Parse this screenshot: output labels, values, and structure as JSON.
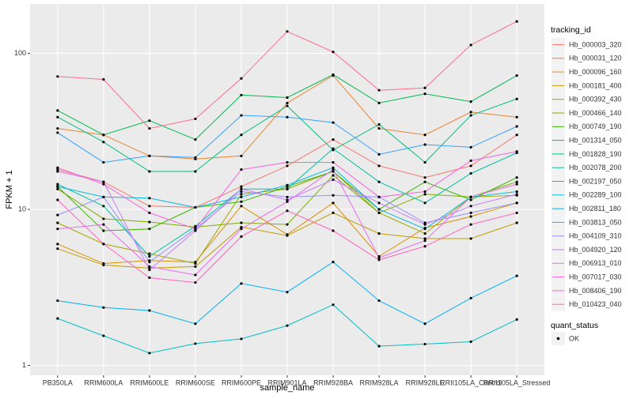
{
  "chart_data": {
    "type": "line",
    "x_label": "sample_name",
    "y_label": "FPKM + 1",
    "log_scale": true,
    "grid": true,
    "ylim": [
      0.865,
      207
    ],
    "yticks": [
      1,
      10,
      100
    ],
    "legend_title": "tracking_id",
    "legend_position": "right",
    "shape_legend_title": "quant_status",
    "shape_legend_labels": [
      "OK"
    ],
    "categories": [
      "PB350LA",
      "RRIM600LA",
      "RRIM600LE",
      "RRIM600SE",
      "RRIM600PE",
      "RRIM901LA",
      "RRIM928BA",
      "RRIM928LA",
      "RRIM928LE",
      "RRII105LA_Control",
      "RRII105LA_Stressed"
    ],
    "series": [
      {
        "name": "Hb_000003_320",
        "color": "#F8766D",
        "values": [
          18,
          15,
          10.5,
          10.3,
          14,
          19,
          28,
          19,
          16,
          19,
          30
        ]
      },
      {
        "name": "Hb_000031_120",
        "color": "#EA8331",
        "values": [
          33,
          30,
          22,
          21,
          22,
          48,
          72,
          33,
          30,
          42,
          39
        ]
      },
      {
        "name": "Hb_000096_160",
        "color": "#D89000",
        "values": [
          6,
          4.5,
          4.7,
          4.6,
          10.5,
          6.9,
          11,
          5,
          7.6,
          9,
          11
        ]
      },
      {
        "name": "Hb_000181_400",
        "color": "#C09B00",
        "values": [
          5.6,
          4.4,
          4.2,
          4.3,
          7.7,
          6.8,
          9.5,
          7,
          6.5,
          6.5,
          8.2
        ]
      },
      {
        "name": "Hb_000392_430",
        "color": "#A3A500",
        "values": [
          8.2,
          6,
          5.2,
          4.5,
          12.5,
          13.5,
          17.5,
          9.5,
          7,
          12,
          12.3
        ]
      },
      {
        "name": "Hb_000466_140",
        "color": "#7CAE00",
        "values": [
          13.5,
          8.7,
          8.3,
          7.7,
          8.2,
          8,
          16.5,
          9.5,
          12.5,
          12,
          15
        ]
      },
      {
        "name": "Hb_000749_190",
        "color": "#39B600",
        "values": [
          14,
          7.3,
          7.5,
          10.3,
          11.2,
          14,
          17.5,
          10,
          15,
          11.5,
          16
        ]
      },
      {
        "name": "Hb_001314_050",
        "color": "#00BB4E",
        "values": [
          43,
          30,
          37,
          28,
          54,
          52,
          73,
          48,
          55,
          49,
          72
        ]
      },
      {
        "name": "Hb_001828_190",
        "color": "#00BF7D",
        "values": [
          39,
          27,
          17.5,
          17.5,
          30,
          46,
          24,
          35,
          20,
          40,
          51
        ]
      },
      {
        "name": "Hb_002078_200",
        "color": "#00C1A3",
        "values": [
          14.5,
          10.5,
          5,
          7.8,
          13.5,
          13.5,
          24.5,
          15,
          11,
          17,
          23
        ]
      },
      {
        "name": "Hb_002197_050",
        "color": "#00BFC4",
        "values": [
          2,
          1.55,
          1.2,
          1.38,
          1.48,
          1.8,
          2.45,
          1.33,
          1.37,
          1.42,
          1.97
        ]
      },
      {
        "name": "Hb_002289_100",
        "color": "#00BAE0",
        "values": [
          14,
          12,
          11.8,
          10.3,
          12,
          14.3,
          18.5,
          10,
          7.5,
          12,
          13
        ]
      },
      {
        "name": "Hb_002811_180",
        "color": "#00B0F6",
        "values": [
          2.6,
          2.35,
          2.25,
          1.85,
          3.35,
          2.95,
          4.6,
          2.6,
          1.85,
          2.7,
          3.75
        ]
      },
      {
        "name": "Hb_003813_050",
        "color": "#35A2FF",
        "values": [
          31,
          20,
          22,
          21.5,
          40,
          39,
          36,
          22.5,
          26,
          25,
          34
        ]
      },
      {
        "name": "Hb_004109_310",
        "color": "#9590FF",
        "values": [
          9.2,
          12,
          4.6,
          7.5,
          13,
          12,
          12.3,
          12,
          8.2,
          9.5,
          11
        ]
      },
      {
        "name": "Hb_004920_120",
        "color": "#C77CFF",
        "values": [
          17.5,
          15,
          4.1,
          7.3,
          13.5,
          11.5,
          15.5,
          11,
          8,
          10.5,
          12.5
        ]
      },
      {
        "name": "Hb_006913_010",
        "color": "#E76BF3",
        "values": [
          7.5,
          8,
          4.3,
          3.8,
          7.5,
          11.2,
          18,
          4.9,
          6.3,
          12,
          14.5
        ]
      },
      {
        "name": "Hb_007017_030",
        "color": "#FA62DB",
        "values": [
          18.5,
          14.5,
          9.5,
          7.5,
          18,
          20,
          20,
          12,
          13,
          20.5,
          23.5
        ]
      },
      {
        "name": "Hb_008406_190",
        "color": "#FF62BC",
        "values": [
          11.5,
          6,
          3.65,
          3.4,
          6.7,
          9.8,
          7.3,
          4.75,
          5.8,
          8,
          9.5
        ]
      },
      {
        "name": "Hb_010423_040",
        "color": "#FF6C91",
        "values": [
          71,
          68,
          33,
          38,
          69,
          138,
          102,
          58,
          60,
          113,
          160
        ]
      }
    ]
  }
}
